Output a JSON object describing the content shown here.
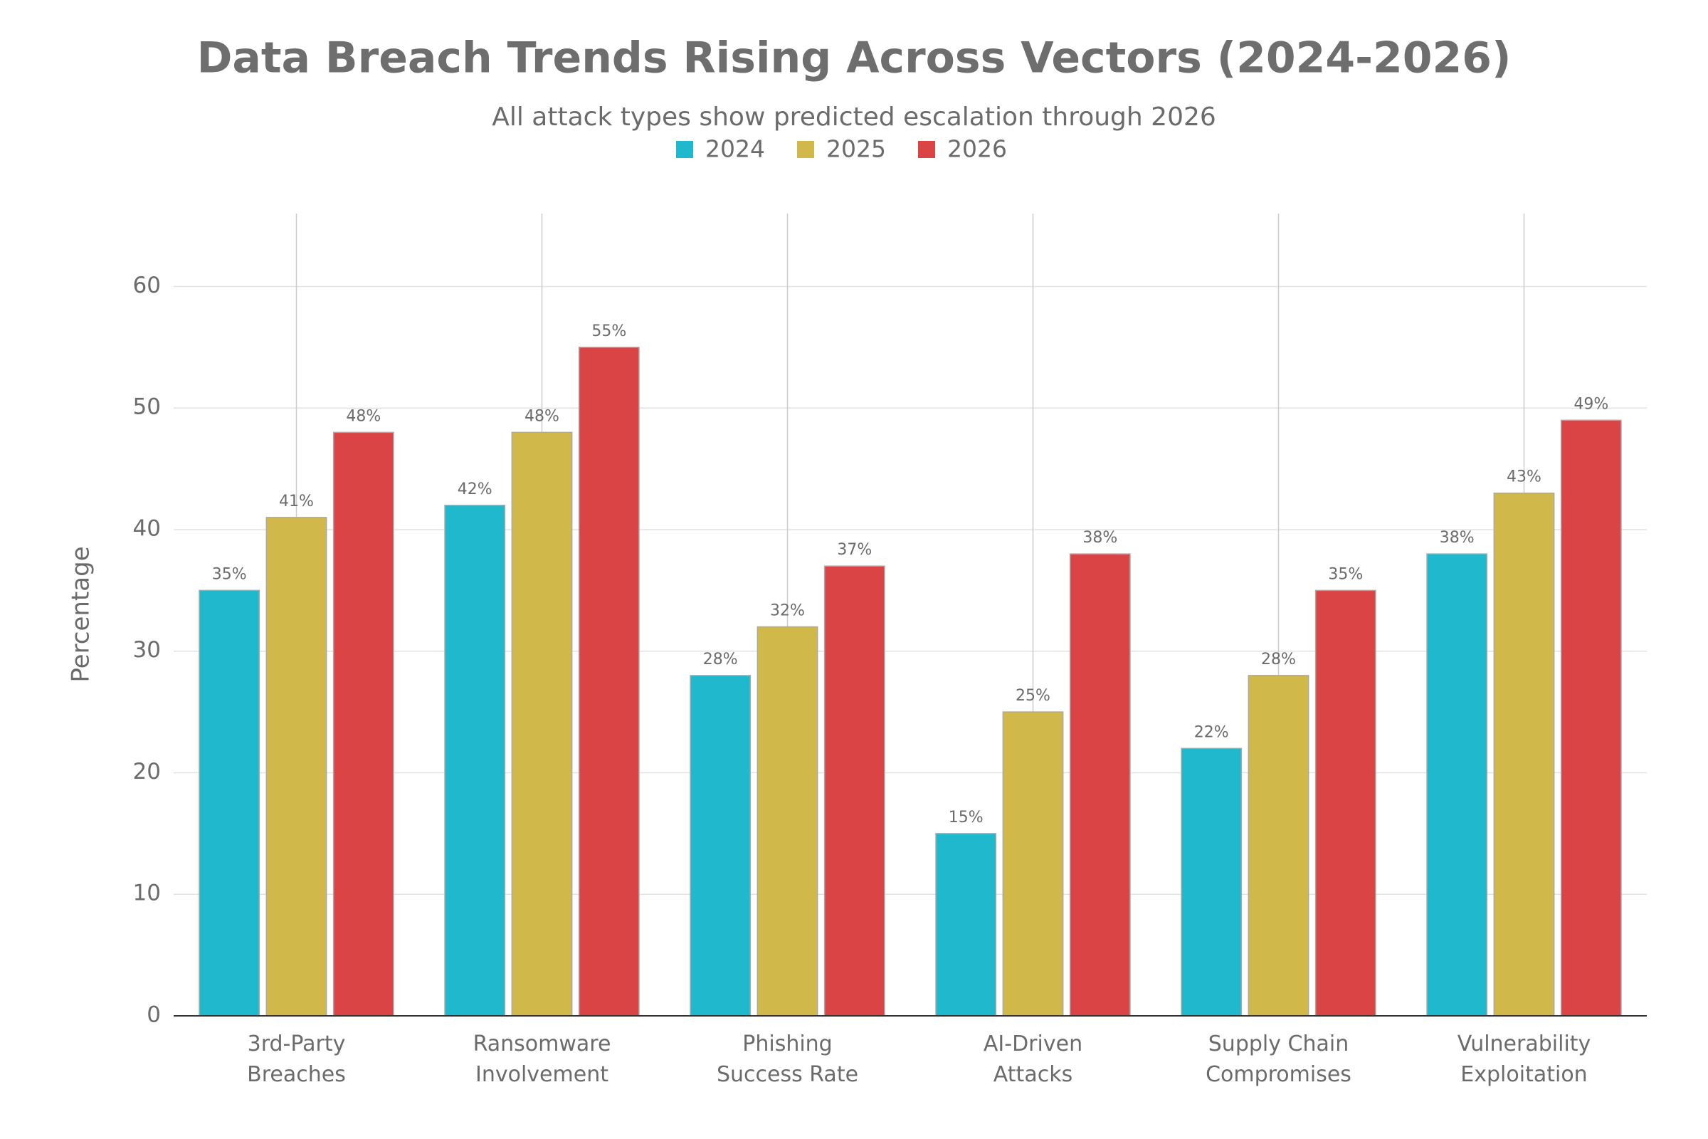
{
  "chart_data": {
    "type": "bar",
    "title": "Data Breach Trends Rising Across Vectors (2024-2026)",
    "subtitle": "All attack types show predicted escalation through 2026",
    "y_label": "Percentage",
    "categories": [
      "3rd-Party Breaches",
      "Ransomware Involvement",
      "Phishing Success Rate",
      "AI-Driven Attacks",
      "Supply Chain Compromises",
      "Vulnerability Exploitation"
    ],
    "series": [
      {
        "name": "2024",
        "color": "#1fb8cc",
        "values": [
          35,
          42,
          28,
          15,
          22,
          38
        ],
        "value_labels": [
          "35%",
          "42%",
          "28%",
          "15%",
          "22%",
          "38%"
        ]
      },
      {
        "name": "2025",
        "color": "#d0b94a",
        "values": [
          41,
          48,
          32,
          25,
          28,
          43
        ],
        "value_labels": [
          "41%",
          "48%",
          "32%",
          "25%",
          "28%",
          "43%"
        ]
      },
      {
        "name": "2026",
        "color": "#db4444",
        "values": [
          48,
          55,
          37,
          38,
          35,
          49
        ],
        "value_labels": [
          "48%",
          "55%",
          "37%",
          "38%",
          "35%",
          "49%"
        ]
      }
    ],
    "ylim": [
      0,
      66
    ],
    "yticks": [
      0,
      10,
      20,
      30,
      40,
      50,
      60
    ],
    "grid": true,
    "legend": "top"
  }
}
